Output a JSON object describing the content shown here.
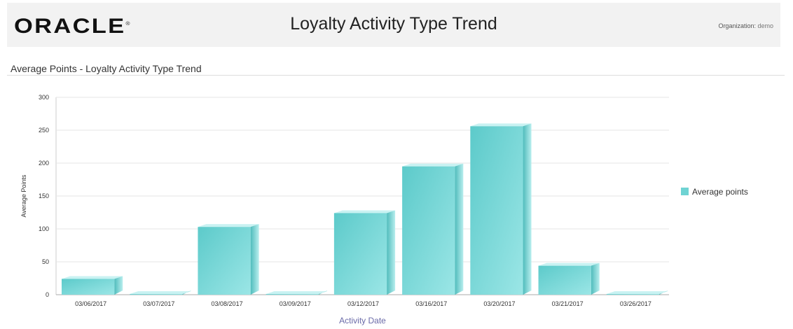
{
  "header": {
    "logo": "ORACLE",
    "title": "Loyalty Activity Type Trend",
    "org_label": "Organization:",
    "org_value": "demo"
  },
  "section_title": "Average Points - Loyalty Activity Type Trend",
  "chart_data": {
    "type": "bar",
    "style": "3d",
    "categories": [
      "03/06/2017",
      "03/07/2017",
      "03/08/2017",
      "03/09/2017",
      "03/12/2017",
      "03/16/2017",
      "03/20/2017",
      "03/21/2017",
      "03/26/2017"
    ],
    "series": [
      {
        "name": "Average points",
        "values": [
          24,
          1,
          103,
          1,
          124,
          195,
          256,
          44,
          1
        ],
        "color": "#6fd3d3"
      }
    ],
    "xlabel": "Activity Date",
    "ylabel": "Average Points",
    "ylim": [
      0,
      300
    ],
    "yticks": [
      0,
      50,
      100,
      150,
      200,
      250,
      300
    ],
    "grid": true,
    "legend": "right"
  }
}
